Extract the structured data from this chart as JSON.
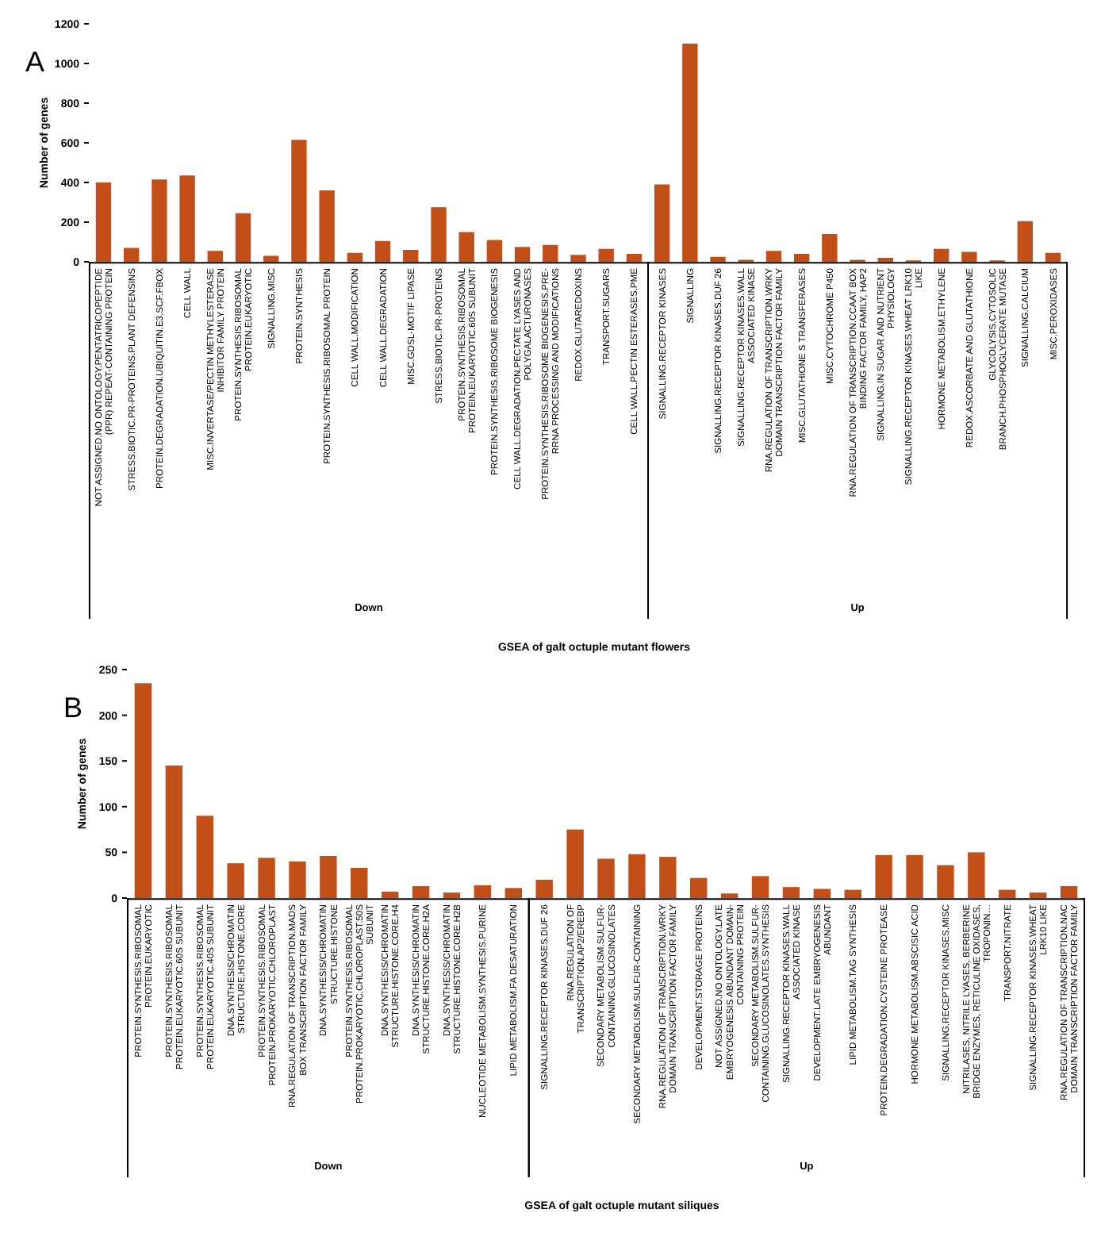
{
  "chart_data": [
    {
      "type": "bar",
      "annotations": [
        "A",
        "Down",
        "Up"
      ],
      "xlabel": "GSEA of galt octuple mutant flowers",
      "ylabel": "Number of genes",
      "ylim": [
        0,
        1200
      ],
      "yticks": [
        0,
        200,
        400,
        600,
        800,
        1000,
        1200
      ],
      "grid": false,
      "categories": [
        "NOT ASSIGNED.NO ONTOLOGY.PENTATRICOPEPTIDE (PPR) REPEAT-CONTAINING PROTEIN",
        "STRESS.BIOTIC.PR-PROTEINS.PLANT DEFENSINS",
        "PROTEIN.DEGRADATION.UBIQUITIN.E3.SCF.FBOX",
        "CELL WALL",
        "MISC.INVERTASE/PECTIN METHYLESTERASE INHIBITOR FAMILY PROTEIN",
        "PROTEIN.SYNTHESIS.RIBOSOMAL PROTEIN.EUKARYOTIC",
        "SIGNALLING.MISC",
        "PROTEIN.SYNTHESIS",
        "PROTEIN.SYNTHESIS.RIBOSOMAL PROTEIN",
        "CELL WALL.MODIFICATION",
        "CELL WALL.DEGRADATION",
        "MISC.GDSL-MOTIF LIPASE",
        "STRESS.BIOTIC.PR-PROTEINS",
        "PROTEIN.SYNTHESIS.RIBOSOMAL PROTEIN.EUKARYOTIC.60S SUBUNIT",
        "PROTEIN.SYNTHESIS.RIBOSOME BIOGENESIS",
        "CELL WALL.DEGRADATION.PECTATE LYASES AND POLYGALACTURONASES",
        "PROTEIN.SYNTHESIS.RIBOSOME BIOGENESIS.PRE-RRNA PROCESSING AND MODIFICATIONS",
        "REDOX.GLUTAREDOXINS",
        "TRANSPORT.SUGARS",
        "CELL WALL.PECTIN ESTERASES.PME",
        "SIGNALLING.RECEPTOR KINASES",
        "SIGNALLING",
        "SIGNALLING.RECEPTOR KINASES.DUF 26",
        "SIGNALLING.RECEPTOR KINASES.WALL ASSOCIATED KINASE",
        "RNA.REGULATION OF TRANSCRIPTION.WRKY DOMAIN TRANSCRIPTION FACTOR FAMILY",
        "MISC.GLUTATHIONE S TRANSFERASES",
        "MISC.CYTOCHROME P450",
        "RNA.REGULATION OF TRANSCRIPTION.CCAAT BOX BINDING FACTOR FAMILY, HAP2",
        "SIGNALLING.IN SUGAR AND NUTRIENT PHYSIOLOGY",
        "SIGNALLING.RECEPTOR KINASES.WHEAT LRK10 LIKE",
        "HORMONE METABOLISM.ETHYLENE",
        "REDOX.ASCORBATE AND GLUTATHIONE",
        "GLYCOLYSIS.CYTOSOLIC BRANCH.PHOSPHOGLYCERATE MUTASE",
        "SIGNALLING.CALCIUM",
        "MISC.PEROXIDASES"
      ],
      "series": [
        {
          "color": "#c24e18",
          "values": [
            400,
            70,
            415,
            435,
            55,
            245,
            30,
            615,
            360,
            45,
            105,
            60,
            275,
            150,
            110,
            75,
            85,
            35,
            65,
            40,
            null,
            null,
            null,
            null,
            null,
            null,
            null,
            null,
            null,
            null,
            null,
            null,
            null,
            null,
            null
          ]
        },
        {
          "color": "#c24e18",
          "values": [
            null,
            null,
            null,
            null,
            null,
            null,
            null,
            null,
            null,
            null,
            null,
            null,
            null,
            null,
            null,
            null,
            null,
            null,
            null,
            null,
            390,
            1100,
            25,
            10,
            55,
            40,
            140,
            10,
            20,
            7,
            65,
            50,
            7,
            205,
            45
          ]
        }
      ]
    },
    {
      "type": "bar",
      "annotations": [
        "B",
        "Down",
        "Up"
      ],
      "xlabel": "GSEA of galt octuple mutant siliques",
      "ylabel": "Number of genes",
      "ylim": [
        0,
        250
      ],
      "yticks": [
        0,
        50,
        100,
        150,
        200,
        250
      ],
      "grid": false,
      "categories": [
        "PROTEIN.SYNTHESIS.RIBOSOMAL PROTEIN.EUKARYOTIC",
        "PROTEIN.SYNTHESIS.RIBOSOMAL PROTEIN.EUKARYOTIC.60S SUBUNIT",
        "PROTEIN.SYNTHESIS.RIBOSOMAL PROTEIN.EUKARYOTIC.40S SUBUNIT",
        "DNA.SYNTHESIS/CHROMATIN STRUCTURE.HISTONE.CORE",
        "PROTEIN.SYNTHESIS.RIBOSOMAL PROTEIN.PROKARYOTIC.CHLOROPLAST",
        "RNA.REGULATION OF TRANSCRIPTION.MADS BOX TRANSCRIPTION FACTOR FAMILY",
        "DNA.SYNTHESIS/CHROMATIN STRUCTURE.HISTONE",
        "PROTEIN.SYNTHESIS.RIBOSOMAL PROTEIN.PROKARYOTIC.CHLOROPLAST.50S SUBUNIT",
        "DNA.SYNTHESIS/CHROMATIN STRUCTURE.HISTONE.CORE.H4",
        "DNA.SYNTHESIS/CHROMATIN STRUCTURE.HISTONE.CORE.H2A",
        "DNA.SYNTHESIS/CHROMATIN STRUCTURE.HISTONE.CORE.H2B",
        "NUCLEOTIDE METABOLISM.SYNTHESIS.PURINE",
        "LIPID METABOLISM.FA DESATURATION",
        "SIGNALLING.RECEPTOR KINASES.DUF 26",
        "RNA.REGULATION OF TRANSCRIPTION.AP2/EREBP",
        "SECONDARY METABOLISM.SULFUR-CONTAINING.GLUCOSINOLATES",
        "SECONDARY METABOLISM.SULFUR-CONTAINING",
        "RNA.REGULATION OF TRANSCRIPTION.WRKY DOMAIN TRANSCRIPTION FACTOR FAMILY",
        "DEVELOPMENT.STORAGE PROTEINS",
        "NOT ASSIGNED.NO ONTOLOGY.LATE EMBRYOGENESIS ABUNDANT DOMAIN-CONTAINING PROTEIN",
        "SECONDARY METABOLISM.SULFUR-CONTAINING.GLUCOSINOLATES.SYNTHESIS",
        "SIGNALLING.RECEPTOR KINASES.WALL ASSOCIATED KINASE",
        "DEVELOPMENT.LATE EMBRYOGENESIS ABUNDANT",
        "LIPID METABOLISM.TAG SYNTHESIS",
        "PROTEIN.DEGRADATION.CYSTEINE PROTEASE",
        "HORMONE METABOLISM.ABSCISIC ACID",
        "SIGNALLING.RECEPTOR KINASES.MISC",
        "NITRILASES, NITRILE LYASES, BERBERINE BRIDGE ENZYMES, RETICULINE OXIDASES, TROPONIN…",
        "TRANSPORT.NITRATE",
        "SIGNALLING.RECEPTOR KINASES.WHEAT LRK10 LIKE",
        "RNA.REGULATION OF TRANSCRIPTION.NAC DOMAIN TRANSCRIPTION FACTOR FAMILY"
      ],
      "series": [
        {
          "color": "#c24e18",
          "values": [
            235,
            145,
            90,
            38,
            44,
            40,
            46,
            33,
            7,
            13,
            6,
            14,
            11,
            null,
            null,
            null,
            null,
            null,
            null,
            null,
            null,
            null,
            null,
            null,
            null,
            null,
            null,
            null,
            null,
            null,
            null
          ]
        },
        {
          "color": "#c24e18",
          "values": [
            null,
            null,
            null,
            null,
            null,
            null,
            null,
            null,
            null,
            null,
            null,
            null,
            null,
            20,
            75,
            43,
            48,
            45,
            22,
            5,
            24,
            12,
            10,
            9,
            47,
            47,
            36,
            50,
            9,
            6,
            13
          ]
        }
      ]
    }
  ]
}
